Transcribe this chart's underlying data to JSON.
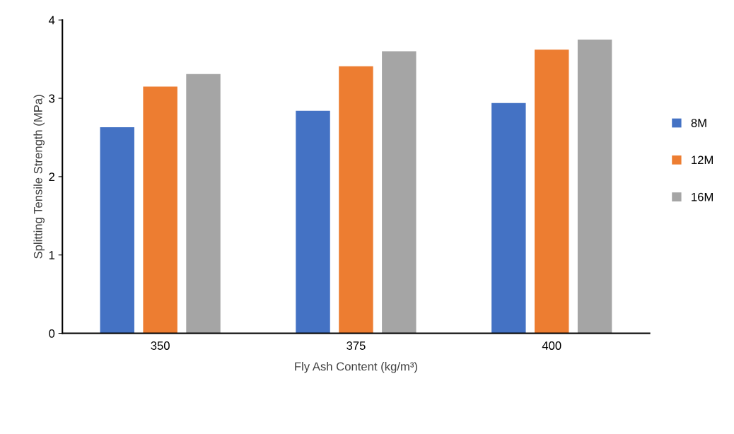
{
  "chart_data": {
    "type": "bar",
    "xlabel": "Fly Ash Content (kg/m³)",
    "ylabel": "Splitting Tensile Strength (MPa)",
    "categories": [
      "350",
      "375",
      "400"
    ],
    "series": [
      {
        "name": "8M",
        "color": "#4472c4",
        "values": [
          2.63,
          2.84,
          2.94
        ]
      },
      {
        "name": "12M",
        "color": "#ed7d31",
        "values": [
          3.15,
          3.41,
          3.62
        ]
      },
      {
        "name": "16M",
        "color": "#a5a5a5",
        "values": [
          3.31,
          3.6,
          3.75
        ]
      }
    ],
    "ylim": [
      0,
      4
    ],
    "yticks": [
      0,
      1,
      2,
      3,
      4
    ],
    "grid": false,
    "legend": "right"
  }
}
